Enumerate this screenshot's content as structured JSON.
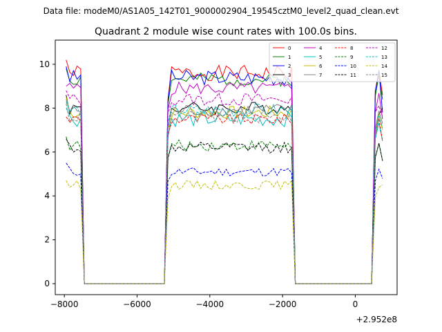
{
  "figure": {
    "suptitle": "Data file: modeM0/AS1A05_142T01_9000002904_19545cztM0_level2_quad_clean.evt",
    "title": "Quadrant 2 module wise count rates with 100.0s bins.",
    "offset_label": "+2.952e8"
  },
  "chart_data": {
    "type": "line",
    "title": "Quadrant 2 module wise count rates with 100.0s bins.",
    "xlabel": "",
    "ylabel": "",
    "x_offset": 295200000,
    "xlim": [
      -8250,
      1150
    ],
    "ylim": [
      -0.5,
      11.1
    ],
    "xticks": [
      -8000,
      -6000,
      -4000,
      -2000,
      0
    ],
    "yticks": [
      0,
      2,
      4,
      6,
      8,
      10
    ],
    "grid": false,
    "legend_position": "top-right",
    "segments": [
      {
        "start": -7950,
        "end": -7550
      },
      {
        "start": -5150,
        "end": -1750
      },
      {
        "start": 550,
        "end": 750
      }
    ],
    "gaps": [
      {
        "start": -7450,
        "end": -5350
      },
      {
        "start": -1550,
        "end": 350
      }
    ],
    "series": [
      {
        "name": "0",
        "color": "#ff0000",
        "dash": "solid",
        "level": 9.6,
        "start_level": 10.2,
        "end_level": 8.6,
        "amp": 0.35
      },
      {
        "name": "1",
        "color": "#008000",
        "dash": "solid",
        "level": 9.3,
        "start_level": 9.8,
        "end_level": 8.4,
        "amp": 0.3
      },
      {
        "name": "2",
        "color": "#0000ff",
        "dash": "solid",
        "level": 9.4,
        "start_level": 9.9,
        "end_level": 7.8,
        "amp": 0.35
      },
      {
        "name": "3",
        "color": "#000000",
        "dash": "solid",
        "level": 8.0,
        "start_level": 8.6,
        "end_level": 8.0,
        "amp": 0.3
      },
      {
        "name": "4",
        "color": "#bf00bf",
        "dash": "solid",
        "level": 8.9,
        "start_level": 9.0,
        "end_level": 7.5,
        "amp": 0.3
      },
      {
        "name": "5",
        "color": "#00bfbf",
        "dash": "solid",
        "level": 7.5,
        "start_level": 8.0,
        "end_level": 6.5,
        "amp": 0.35
      },
      {
        "name": "6",
        "color": "#bfbf00",
        "dash": "solid",
        "level": 7.8,
        "start_level": 8.5,
        "end_level": 7.0,
        "amp": 0.3
      },
      {
        "name": "7",
        "color": "#808080",
        "dash": "solid",
        "level": 7.9,
        "start_level": 8.4,
        "end_level": 7.3,
        "amp": 0.3
      },
      {
        "name": "8",
        "color": "#ff0000",
        "dash": "dashed",
        "level": 7.5,
        "start_level": 7.6,
        "end_level": 6.5,
        "amp": 0.25
      },
      {
        "name": "9",
        "color": "#008000",
        "dash": "dashed",
        "level": 6.3,
        "start_level": 6.7,
        "end_level": 5.6,
        "amp": 0.25
      },
      {
        "name": "10",
        "color": "#0000ff",
        "dash": "dashed",
        "level": 5.1,
        "start_level": 5.5,
        "end_level": 4.8,
        "amp": 0.2
      },
      {
        "name": "11",
        "color": "#000000",
        "dash": "dashed",
        "level": 6.2,
        "start_level": 6.6,
        "end_level": 5.6,
        "amp": 0.25
      },
      {
        "name": "12",
        "color": "#bf00bf",
        "dash": "dashed",
        "level": 8.4,
        "start_level": 8.8,
        "end_level": 7.6,
        "amp": 0.3
      },
      {
        "name": "13",
        "color": "#00bfbf",
        "dash": "dashed",
        "level": 7.9,
        "start_level": 8.3,
        "end_level": 7.1,
        "amp": 0.3
      },
      {
        "name": "14",
        "color": "#bfbf00",
        "dash": "dashed",
        "level": 4.5,
        "start_level": 4.7,
        "end_level": 4.5,
        "amp": 0.2
      },
      {
        "name": "15",
        "color": "#808080",
        "dash": "dashed",
        "level": 7.6,
        "start_level": 8.2,
        "end_level": 7.2,
        "amp": 0.3
      }
    ]
  }
}
